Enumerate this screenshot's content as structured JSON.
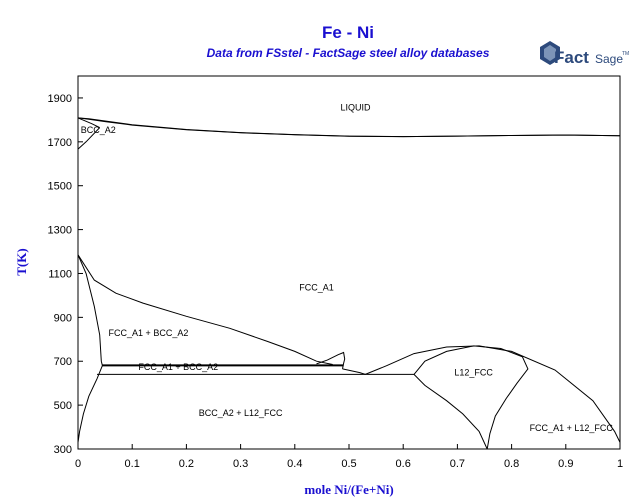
{
  "title": "Fe - Ni",
  "subtitle": "Data from FSstel - FactSage steel alloy databases",
  "logo": {
    "text_main": "Fact",
    "text_sub": "Sage",
    "trademark": "TM",
    "icon": "factsage-logo-icon"
  },
  "chart_data": {
    "type": "phase-diagram",
    "xlabel": "mole Ni/(Fe+Ni)",
    "ylabel": "T(K)",
    "xlim": [
      0,
      1
    ],
    "ylim": [
      300,
      2000
    ],
    "x_ticks": [
      "0",
      "0.1",
      "0.2",
      "0.3",
      "0.4",
      "0.5",
      "0.6",
      "0.7",
      "0.8",
      "0.9",
      "1"
    ],
    "y_ticks": [
      "300",
      "500",
      "700",
      "900",
      "1100",
      "1300",
      "1500",
      "1700",
      "1900"
    ],
    "grid": false,
    "regions": [
      {
        "label": "LIQUID",
        "x": 0.512,
        "y": 1843
      },
      {
        "label": "BCC_A2",
        "x": 0.005,
        "y": 1740
      },
      {
        "label": "FCC_A1",
        "x": 0.44,
        "y": 1022
      },
      {
        "label": "FCC_A1 + BCC_A2",
        "x": 0.13,
        "y": 815
      },
      {
        "label": "FCC_A1 + BCC_A2",
        "x": 0.185,
        "y": 660
      },
      {
        "label": "L12_FCC",
        "x": 0.73,
        "y": 634
      },
      {
        "label": "BCC_A2 + L12_FCC",
        "x": 0.3,
        "y": 451
      },
      {
        "label": "FCC_A1 + L12_FCC",
        "x": 0.91,
        "y": 383
      }
    ],
    "curves": [
      {
        "name": "liquidus",
        "style": "normal",
        "points": [
          [
            0,
            1809
          ],
          [
            0.02,
            1805
          ],
          [
            0.05,
            1795
          ],
          [
            0.1,
            1778
          ],
          [
            0.2,
            1756
          ],
          [
            0.3,
            1742
          ],
          [
            0.4,
            1733
          ],
          [
            0.5,
            1726
          ],
          [
            0.6,
            1724
          ],
          [
            0.7,
            1726
          ],
          [
            0.8,
            1729
          ],
          [
            0.9,
            1731
          ],
          [
            1.0,
            1728
          ]
        ]
      },
      {
        "name": "solidus",
        "style": "normal",
        "points": [
          [
            0,
            1809
          ],
          [
            0.02,
            1803
          ],
          [
            0.05,
            1792
          ],
          [
            0.1,
            1776
          ],
          [
            0.2,
            1755
          ],
          [
            0.3,
            1741
          ],
          [
            0.4,
            1732
          ],
          [
            0.5,
            1725
          ],
          [
            0.6,
            1724
          ],
          [
            0.7,
            1726
          ],
          [
            0.8,
            1729
          ],
          [
            0.9,
            1731
          ],
          [
            1.0,
            1728
          ]
        ]
      },
      {
        "name": "delta-loop-upper",
        "style": "normal",
        "points": [
          [
            0,
            1809
          ],
          [
            0.025,
            1783
          ],
          [
            0.04,
            1765
          ]
        ]
      },
      {
        "name": "delta-loop-lower",
        "style": "normal",
        "points": [
          [
            0,
            1667
          ],
          [
            0.015,
            1700
          ],
          [
            0.04,
            1765
          ]
        ]
      },
      {
        "name": "gamma-alpha-left",
        "style": "normal",
        "points": [
          [
            0,
            1185
          ],
          [
            0.015,
            1100
          ],
          [
            0.03,
            950
          ],
          [
            0.04,
            820
          ],
          [
            0.043,
            700
          ],
          [
            0.045,
            680
          ]
        ]
      },
      {
        "name": "alpha-boundary-low",
        "style": "normal",
        "points": [
          [
            0.045,
            680
          ],
          [
            0.035,
            620
          ],
          [
            0.02,
            540
          ],
          [
            0.01,
            460
          ],
          [
            0.003,
            380
          ],
          [
            0,
            330
          ]
        ]
      },
      {
        "name": "gamma-alpha-right",
        "style": "normal",
        "points": [
          [
            0,
            1185
          ],
          [
            0.03,
            1070
          ],
          [
            0.07,
            1010
          ],
          [
            0.12,
            965
          ],
          [
            0.2,
            905
          ],
          [
            0.28,
            850
          ],
          [
            0.35,
            790
          ],
          [
            0.4,
            745
          ],
          [
            0.44,
            700
          ],
          [
            0.47,
            685
          ]
        ]
      },
      {
        "name": "miscibility-gap",
        "style": "normal",
        "points": [
          [
            0.44,
            688
          ],
          [
            0.46,
            705
          ],
          [
            0.48,
            730
          ],
          [
            0.49,
            740
          ],
          [
            0.492,
            710
          ],
          [
            0.49,
            690
          ],
          [
            0.488,
            665
          ]
        ]
      },
      {
        "name": "eutectoid-line-upper",
        "style": "thick",
        "points": [
          [
            0.045,
            681
          ],
          [
            0.49,
            681
          ]
        ]
      },
      {
        "name": "eutectoid-line-lower",
        "style": "normal",
        "points": [
          [
            0.035,
            640
          ],
          [
            0.62,
            640
          ]
        ]
      },
      {
        "name": "fcc-dip",
        "style": "normal",
        "points": [
          [
            0.488,
            665
          ],
          [
            0.52,
            648
          ],
          [
            0.53,
            640
          ]
        ]
      },
      {
        "name": "miscibility-dome",
        "style": "normal",
        "points": [
          [
            0.53,
            640
          ],
          [
            0.57,
            680
          ],
          [
            0.62,
            735
          ],
          [
            0.68,
            765
          ],
          [
            0.74,
            770
          ],
          [
            0.8,
            745
          ],
          [
            0.88,
            660
          ],
          [
            0.95,
            520
          ],
          [
            0.99,
            380
          ],
          [
            1.0,
            330
          ]
        ]
      },
      {
        "name": "l12-boundary-left",
        "style": "normal",
        "points": [
          [
            0.62,
            640
          ],
          [
            0.64,
            700
          ],
          [
            0.68,
            745
          ],
          [
            0.73,
            770
          ],
          [
            0.78,
            758
          ],
          [
            0.82,
            720
          ],
          [
            0.83,
            665
          ],
          [
            0.81,
            600
          ],
          [
            0.79,
            530
          ],
          [
            0.77,
            450
          ],
          [
            0.76,
            370
          ],
          [
            0.755,
            300
          ]
        ]
      },
      {
        "name": "l12-boundary-lower",
        "style": "normal",
        "points": [
          [
            0.62,
            640
          ],
          [
            0.64,
            590
          ],
          [
            0.68,
            520
          ],
          [
            0.71,
            460
          ],
          [
            0.74,
            380
          ],
          [
            0.755,
            300
          ]
        ]
      }
    ]
  }
}
